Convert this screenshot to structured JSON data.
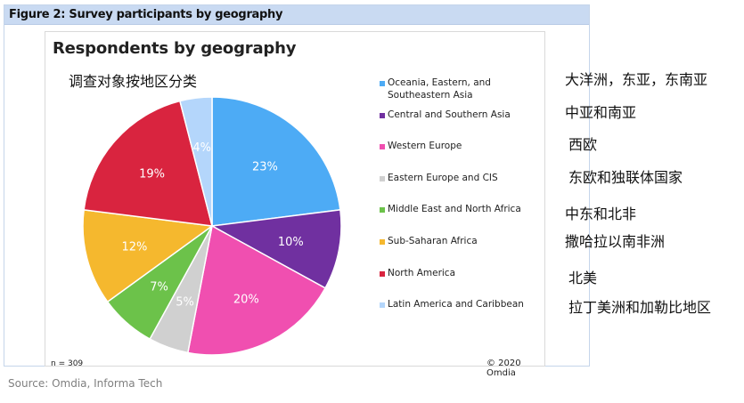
{
  "figure": {
    "title": "Figure 2: Survey participants by geography"
  },
  "chart_data": {
    "type": "pie",
    "title": "Respondents by geography",
    "subtitle": "调查对象按地区分类",
    "labels": [
      "Oceania, Eastern, and Southeastern Asia",
      "Central and Southern Asia",
      "Western Europe",
      "Eastern Europe and CIS",
      "Middle East and North Africa",
      "Sub-Saharan Africa",
      "North America",
      "Latin America and Caribbean"
    ],
    "values": [
      23,
      10,
      20,
      5,
      7,
      12,
      19,
      4
    ],
    "value_labels": [
      "23%",
      "10%",
      "20%",
      "5%",
      "7%",
      "12%",
      "19%",
      "4%"
    ],
    "colors": [
      "#4dabf5",
      "#7030a0",
      "#f04fb0",
      "#d0d0d0",
      "#6cc24a",
      "#f5b82e",
      "#d9243f",
      "#b4d6fb"
    ],
    "label_colors": [
      "#ffffff",
      "#ffffff",
      "#ffffff",
      "#ffffff",
      "#ffffff",
      "#ffffff",
      "#ffffff",
      "#ffffff"
    ],
    "legend_position": "right",
    "note": "n = 309",
    "copyright": "© 2020 Omdia"
  },
  "translations": [
    "大洋洲，东亚，东南亚",
    "中亚和南亚",
    "西欧",
    "东欧和独联体国家",
    "中东和北非",
    "撒哈拉以南非洲",
    "北美",
    "拉丁美洲和加勒比地区"
  ],
  "source": "Source: Omdia, Informa Tech"
}
